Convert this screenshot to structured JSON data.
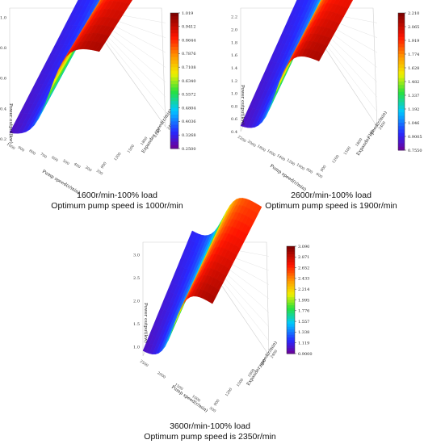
{
  "chart_data": [
    {
      "type": "surface",
      "caption_line1": "1600r/min-100% load",
      "caption_line2": "Optimum pump speed is 1000r/min",
      "xlabel": "Pump speed(r/min)",
      "ylabel": "Expander speed(r/min)",
      "zlabel": "Power output(kw)",
      "x_ticks": [
        "1000",
        "900",
        "800",
        "700",
        "600",
        "500",
        "400",
        "300",
        "200"
      ],
      "y_ticks": [
        "900",
        "1200",
        "1500",
        "1800",
        "2100",
        "2400"
      ],
      "z_ticks": [
        "0.2",
        "0.4",
        "0.6",
        "0.8",
        "1.0"
      ],
      "z_range": [
        0.2,
        1.0
      ],
      "plateau_at": "high pump speed",
      "colorbar_ticks": [
        "1.019",
        "0.9412",
        "0.8644",
        "0.7876",
        "0.7108",
        "0.6340",
        "0.5572",
        "0.4804",
        "0.4036",
        "0.3268",
        "0.2500"
      ],
      "colorbar_range": [
        0.25,
        1.019
      ]
    },
    {
      "type": "surface",
      "caption_line1": "2600r/min-100% load",
      "caption_line2": "Optimum pump speed is 1900r/min",
      "xlabel": "Pump speed(r/min)",
      "ylabel": "Expander speed(r/min)",
      "zlabel": "Power output(kw)",
      "x_ticks": [
        "2200",
        "2000",
        "1800",
        "1600",
        "1400",
        "1200",
        "1000",
        "800",
        "600"
      ],
      "y_ticks": [
        "900",
        "1200",
        "1500",
        "1800",
        "2100",
        "2400"
      ],
      "z_ticks": [
        "0.4",
        "0.6",
        "0.8",
        "1.0",
        "1.2",
        "1.4",
        "1.6",
        "1.8",
        "2.0",
        "2.2"
      ],
      "z_range": [
        0.4,
        2.2
      ],
      "plateau_at": "high pump speed",
      "colorbar_ticks": [
        "2.210",
        "2.065",
        "1.919",
        "1.774",
        "1.628",
        "1.482",
        "1.337",
        "1.192",
        "1.046",
        "0.9005",
        "0.7550"
      ],
      "colorbar_range": [
        0.755,
        2.21
      ]
    },
    {
      "type": "surface",
      "caption_line1": "3600r/min-100% load",
      "caption_line2": "Optimum pump speed is 2350r/min",
      "xlabel": "Pump speed(r/min)",
      "ylabel": "Expander speed(r/min)",
      "zlabel": "Power output(kw)",
      "x_ticks": [
        "2500",
        "2000",
        "1500",
        "1000",
        "500"
      ],
      "y_ticks": [
        "900",
        "1200",
        "1500",
        "1800",
        "2100",
        "2400"
      ],
      "z_ticks": [
        "1.0",
        "1.5",
        "2.0",
        "2.5",
        "3.0"
      ],
      "z_range": [
        0.8,
        3.1
      ],
      "plateau_at": "high pump speed",
      "colorbar_ticks": [
        "3.090",
        "2.871",
        "2.652",
        "2.433",
        "2.214",
        "1.995",
        "1.776",
        "1.557",
        "1.338",
        "1.119",
        "0.9000"
      ],
      "colorbar_range": [
        0.9,
        3.09
      ]
    }
  ]
}
